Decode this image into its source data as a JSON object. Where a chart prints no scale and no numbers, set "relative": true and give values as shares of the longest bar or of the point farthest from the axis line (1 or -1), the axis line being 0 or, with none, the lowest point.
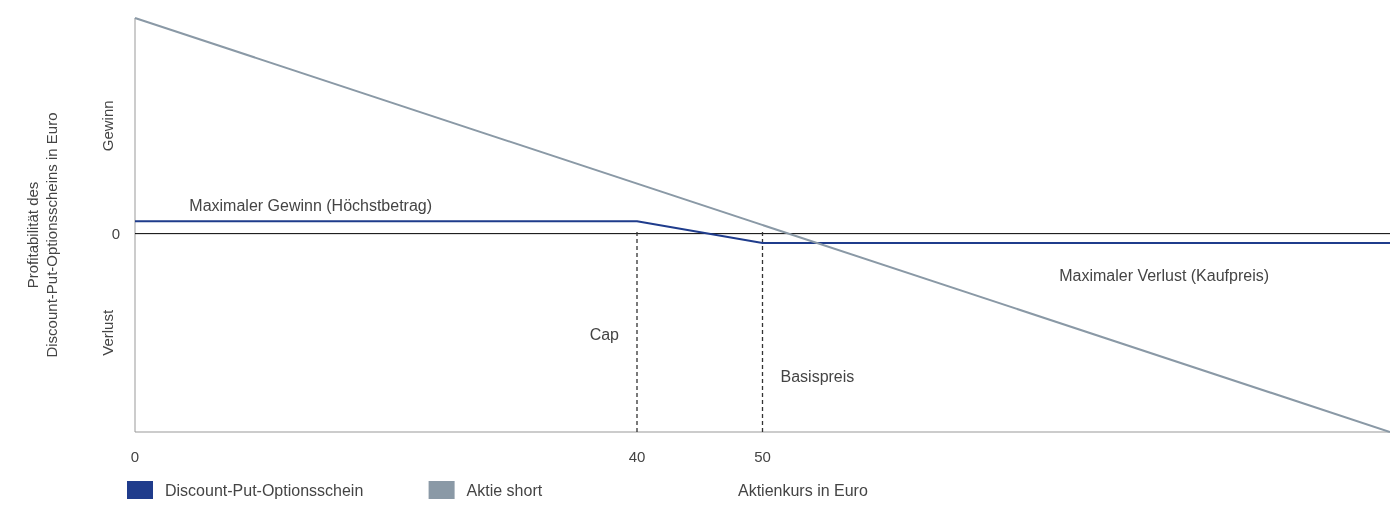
{
  "chart_data": {
    "type": "line",
    "relative": true,
    "xlabel": "Aktienkurs in Euro",
    "ylabel": "Profitabilität des\nDiscount-Put-Optionsscheins in Euro",
    "xlim": [
      0,
      100
    ],
    "xticks": [
      0,
      40,
      50
    ],
    "legend": "bottom",
    "grid": false,
    "series": [
      {
        "name": "Discount-Put-Optionsschein",
        "color": "#1f3c8c",
        "x": [
          0,
          40,
          50,
          100
        ],
        "values": [
          0.057,
          0.057,
          -0.043,
          -0.043
        ]
      },
      {
        "name": "Aktie short",
        "color": "#8a99a6",
        "x": [
          0,
          100
        ],
        "values": [
          1,
          -0.92
        ]
      }
    ],
    "ref_lines": [
      {
        "axis": "x",
        "value": 40,
        "label": "Cap",
        "line_style": "dashed",
        "color": "#333333"
      },
      {
        "axis": "x",
        "value": 50,
        "label": "Basispreis",
        "line_style": "dashed",
        "color": "#333333"
      }
    ],
    "annotations": [
      "Gewinn",
      "Verlust",
      "0",
      {
        "text": "Maximaler Gewinn (Höchstbetrag)",
        "x": 14,
        "y": 0.057
      },
      {
        "text": "Maximaler Verlust (Kaufpreis)",
        "x": 82,
        "y": -0.043
      }
    ]
  }
}
